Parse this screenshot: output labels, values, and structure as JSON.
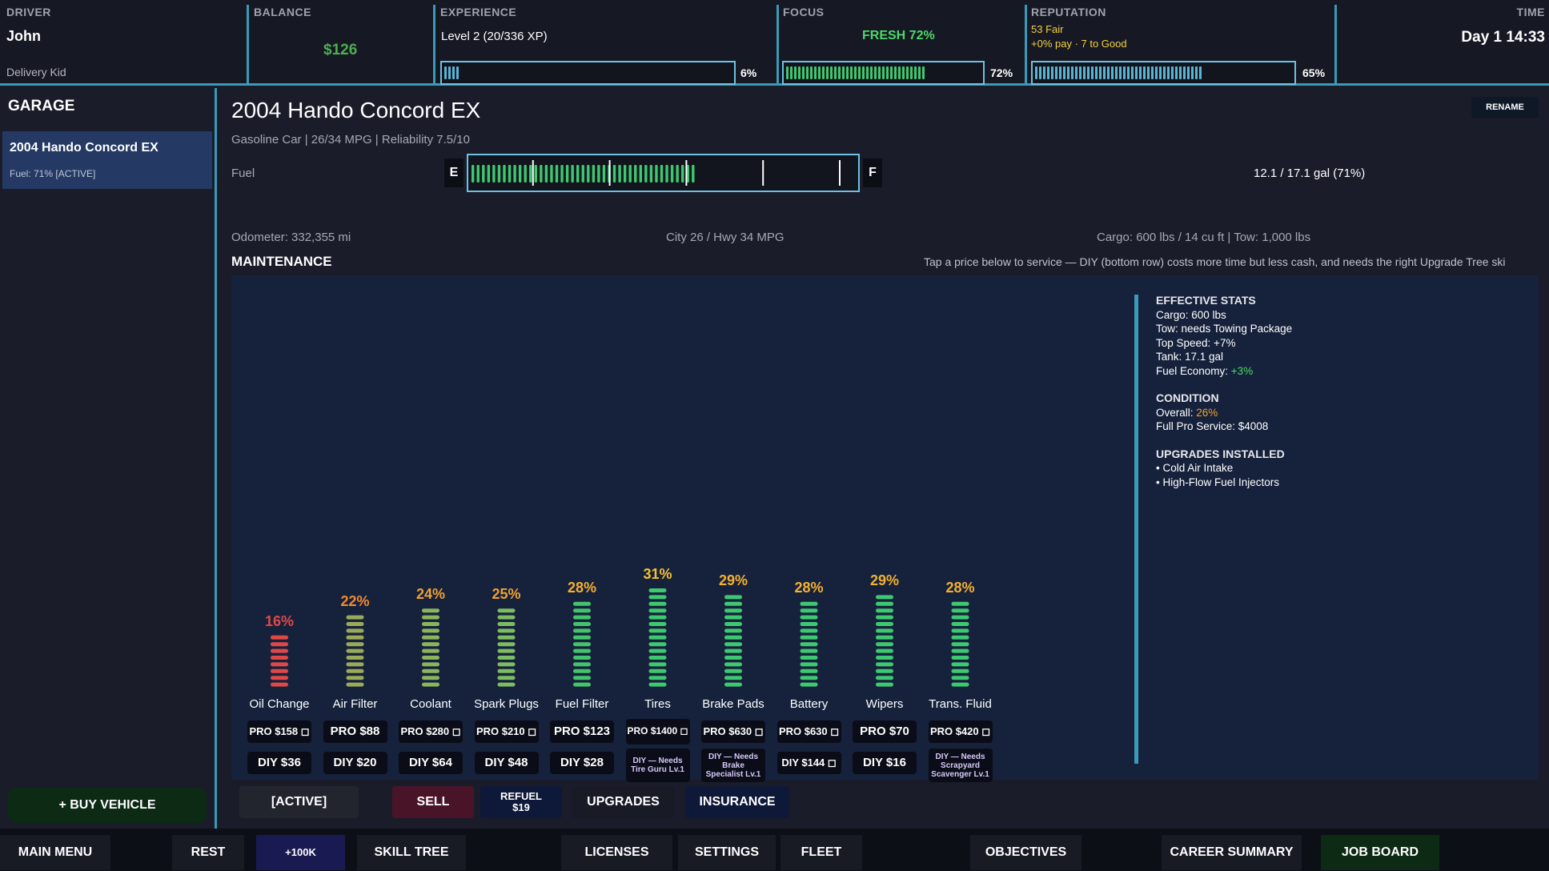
{
  "topbar": {
    "driver_label": "DRIVER",
    "driver_name": "John",
    "driver_title": "Delivery Kid",
    "balance_label": "BALANCE",
    "balance": "$126",
    "experience_label": "EXPERIENCE",
    "experience_text": "Level 2  (20/336 XP)",
    "experience_pct": "6%",
    "experience_fill": 0.06,
    "focus_label": "FOCUS",
    "focus_text": "FRESH  72%",
    "focus_pct": "72%",
    "focus_fill": 0.72,
    "reputation_label": "REPUTATION",
    "reputation_line1": "53  Fair",
    "reputation_line2": "+0% pay  ·  7 to Good",
    "reputation_pct": "65%",
    "reputation_fill": 0.65,
    "time_label": "TIME",
    "time": "Day 1   14:33"
  },
  "sidebar": {
    "title": "GARAGE",
    "vehicle_name": "2004 Hando Concord EX",
    "vehicle_fuel": "Fuel: 71%  [ACTIVE]",
    "buy_button": "+ BUY VEHICLE"
  },
  "vehicle": {
    "title": "2004 Hando Concord EX",
    "subtitle": "Gasoline  Car   | 26/34 MPG   | Reliability 7.5/10",
    "rename_button": "RENAME",
    "fuel_label": "Fuel",
    "fuel_e": "E",
    "fuel_f": "F",
    "fuel_fill": 0.71,
    "fuel_gallons": "12.1 / 17.1 gal  (71%)",
    "odometer": "Odometer: 332,355 mi",
    "mpg": "City 26 / Hwy 34 MPG",
    "cargo": "Cargo: 600 lbs  /  14 cu ft   | Tow: 1,000 lbs"
  },
  "maintenance": {
    "title": "MAINTENANCE",
    "hint": "Tap a price below to service — DIY (bottom row) costs more time but less cash, and needs the right Upgrade Tree ski",
    "items": [
      {
        "name": "Oil Change",
        "pct": "16%",
        "level": 0.16,
        "pct_color": "#e04848",
        "bar_color": "#e04848",
        "pro": "PRO $158 ◻",
        "diy": "DIY $36",
        "diy_locked": false
      },
      {
        "name": "Air Filter",
        "pct": "22%",
        "level": 0.22,
        "pct_color": "#f08a30",
        "bar_color": "#9aaa58",
        "pro": "PRO $88",
        "diy": "DIY $20",
        "diy_locked": false
      },
      {
        "name": "Coolant",
        "pct": "24%",
        "level": 0.24,
        "pct_color": "#f0a030",
        "bar_color": "#8cb45c",
        "pro": "PRO $280 ◻",
        "diy": "DIY $64",
        "diy_locked": false
      },
      {
        "name": "Spark Plugs",
        "pct": "25%",
        "level": 0.25,
        "pct_color": "#f0a030",
        "bar_color": "#7cbc62",
        "pro": "PRO $210 ◻",
        "diy": "DIY $48",
        "diy_locked": false
      },
      {
        "name": "Fuel Filter",
        "pct": "28%",
        "level": 0.28,
        "pct_color": "#f5b030",
        "bar_color": "#44c46a",
        "pro": "PRO $123",
        "diy": "DIY $28",
        "diy_locked": false
      },
      {
        "name": "Tires",
        "pct": "31%",
        "level": 0.31,
        "pct_color": "#f5c030",
        "bar_color": "#3ec870",
        "pro": "PRO $1400 ◻",
        "diy": "DIY — Needs Tire Guru Lv.1",
        "diy_locked": true
      },
      {
        "name": "Brake Pads",
        "pct": "29%",
        "level": 0.29,
        "pct_color": "#f5b030",
        "bar_color": "#3ec870",
        "pro": "PRO $630 ◻",
        "diy": "DIY — Needs Brake Specialist Lv.1",
        "diy_locked": true
      },
      {
        "name": "Battery",
        "pct": "28%",
        "level": 0.28,
        "pct_color": "#f5b030",
        "bar_color": "#3ec870",
        "pro": "PRO $630 ◻",
        "diy": "DIY $144 ◻",
        "diy_locked": false
      },
      {
        "name": "Wipers",
        "pct": "29%",
        "level": 0.29,
        "pct_color": "#f5b030",
        "bar_color": "#3ec870",
        "pro": "PRO $70",
        "diy": "DIY $16",
        "diy_locked": false
      },
      {
        "name": "Trans. Fluid",
        "pct": "28%",
        "level": 0.28,
        "pct_color": "#f5b030",
        "bar_color": "#3ec870",
        "pro": "PRO $420 ◻",
        "diy": "DIY — Needs Scrapyard Scavenger Lv.1",
        "diy_locked": true
      }
    ]
  },
  "effective": {
    "stats_head": "EFFECTIVE STATS",
    "cargo": "Cargo: 600 lbs",
    "tow": "Tow: needs Towing Package",
    "top_speed": "Top Speed: +7%",
    "tank": "Tank: 17.1 gal",
    "economy_label": "Fuel Economy: ",
    "economy_value": "+3%",
    "economy_color": "#4cd964",
    "condition_head": "CONDITION",
    "overall_label": "Overall: ",
    "overall_value": "26%",
    "overall_color": "#f0a030",
    "full_service": "Full Pro Service: $4008",
    "upgrades_head": "UPGRADES INSTALLED",
    "upgrade_1": "• Cold Air Intake",
    "upgrade_2": "• High-Flow Fuel Injectors"
  },
  "actions": {
    "active": "[ACTIVE]",
    "sell": "SELL",
    "refuel": "REFUEL\n$19",
    "upgrades": "UPGRADES",
    "insurance": "INSURANCE"
  },
  "bottombar": {
    "main_menu": "MAIN MENU",
    "rest": "REST",
    "plus_100k": "+100K",
    "skill_tree": "SKILL TREE",
    "licenses": "LICENSES",
    "settings": "SETTINGS",
    "fleet": "FLEET",
    "objectives": "OBJECTIVES",
    "career_summary": "CAREER SUMMARY",
    "job_board": "JOB BOARD"
  },
  "colors": {
    "accent": "#3a9ab8",
    "meter_border": "#6cc2e0",
    "meter_fill": "#3ec870",
    "reputation_fill": "#5ab4d4"
  }
}
